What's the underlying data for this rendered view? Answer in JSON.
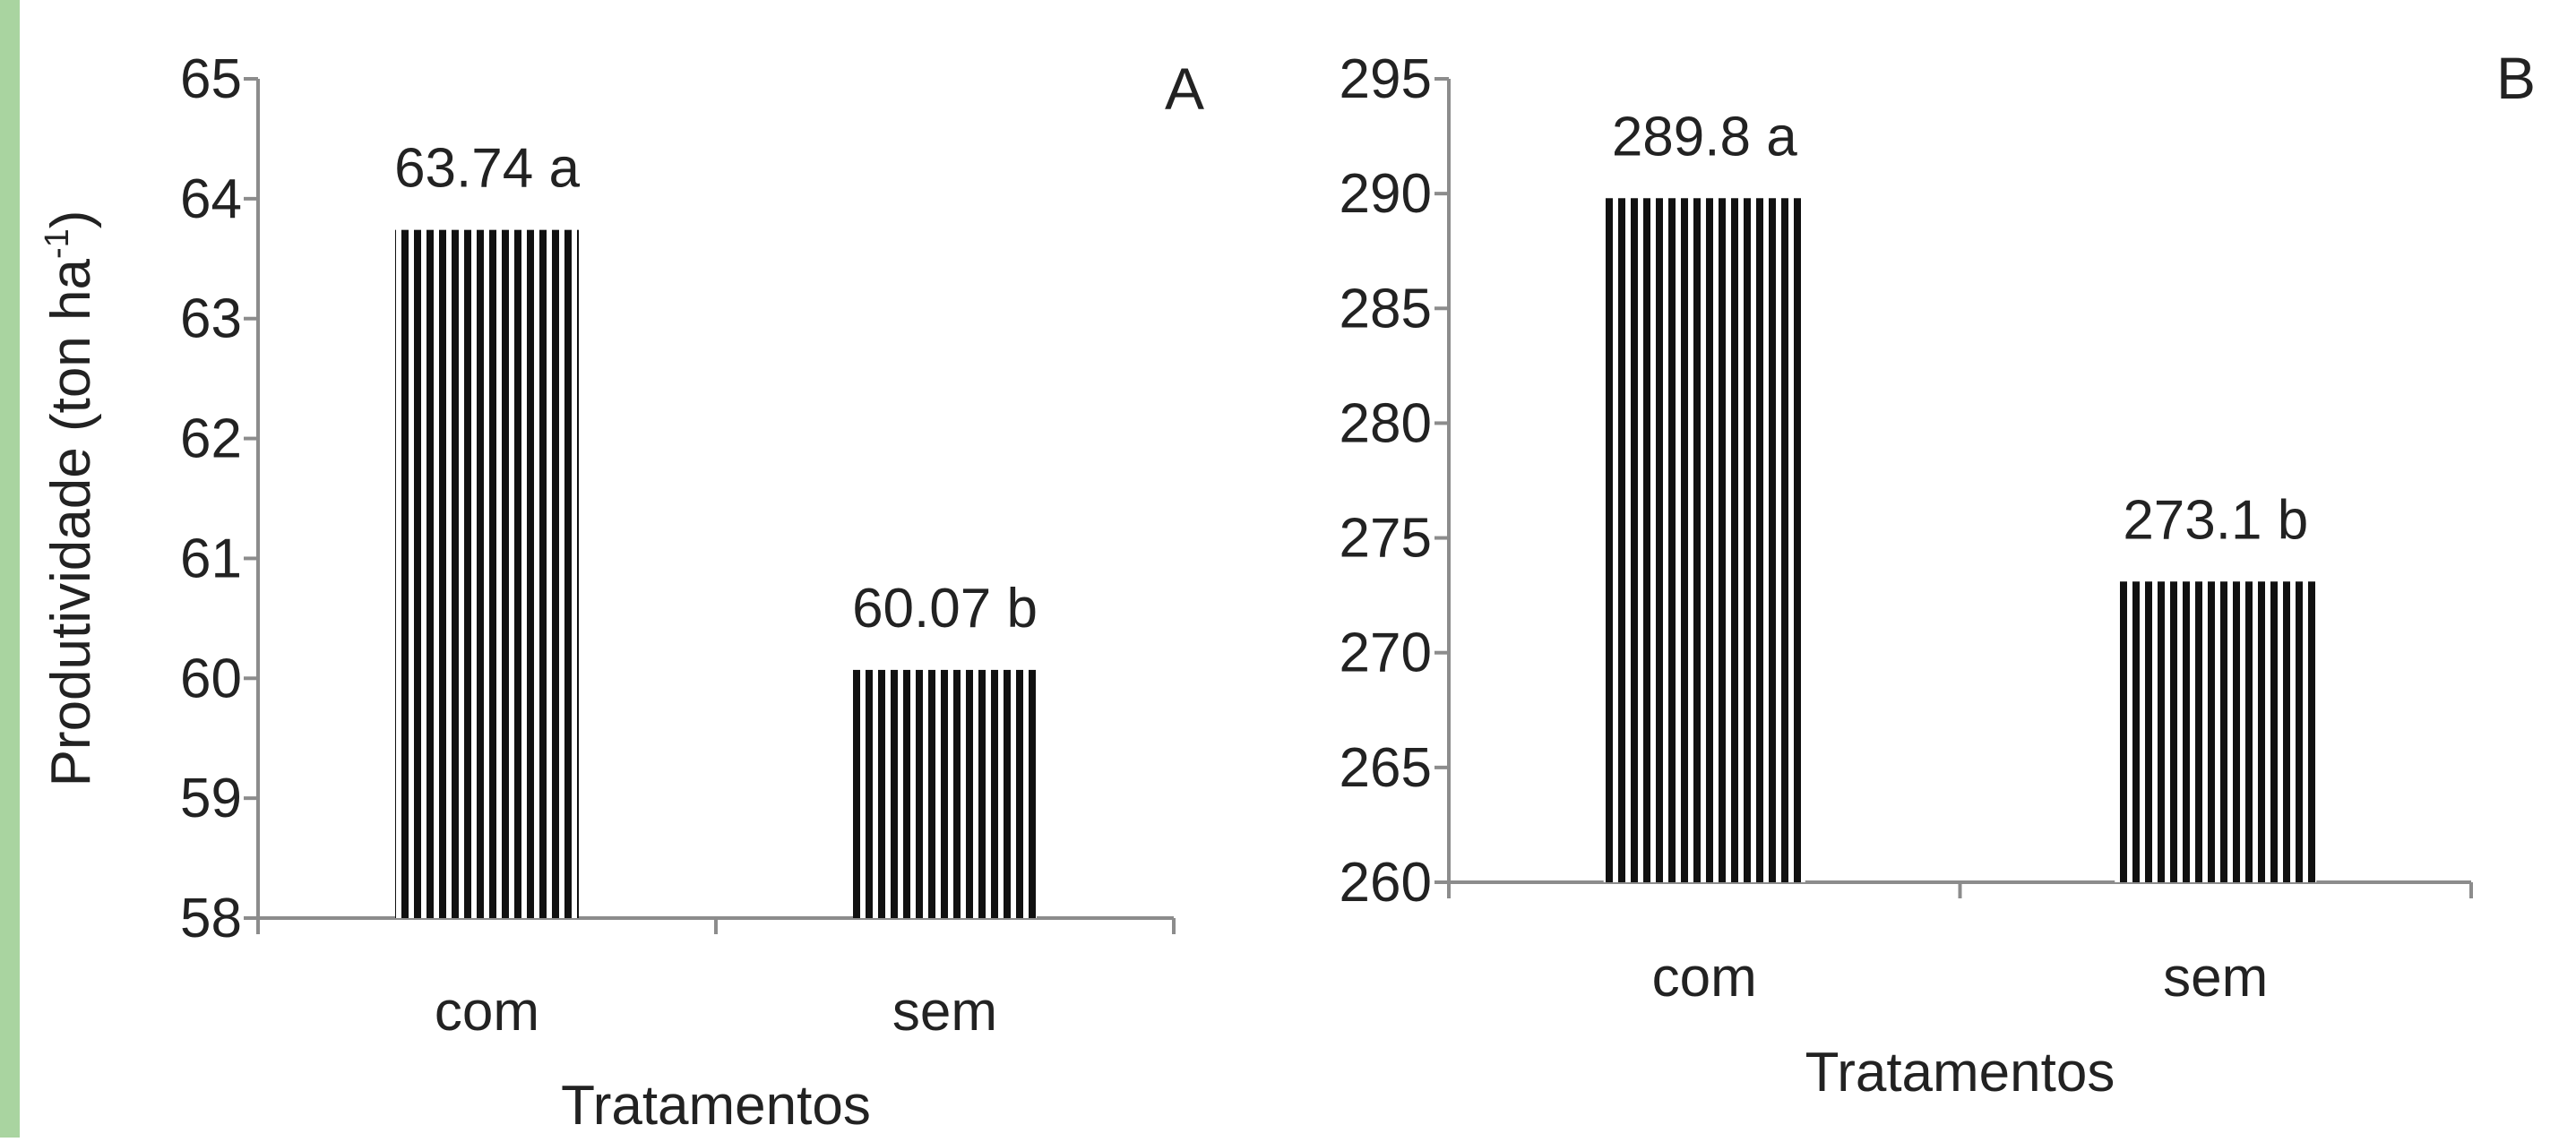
{
  "chart_data": [
    {
      "type": "bar",
      "panel": "A",
      "categories": [
        "com",
        "sem"
      ],
      "values": [
        63.74,
        60.07
      ],
      "data_labels": [
        "63.74 a",
        "60.07 b"
      ],
      "ylim": [
        58,
        65
      ],
      "yticks": [
        58,
        59,
        60,
        61,
        62,
        63,
        64,
        65
      ],
      "xlabel": "Tratamentos",
      "ylabel": "Produtividade (ton ha",
      "ylabel_sup": "-1",
      "ylabel_end": ")",
      "grid": false,
      "legend": "none",
      "bar_pattern": "vertical-stripes",
      "bar_color": "#111111"
    },
    {
      "type": "bar",
      "panel": "B",
      "categories": [
        "com",
        "sem"
      ],
      "values": [
        289.8,
        273.1
      ],
      "data_labels": [
        "289.8 a",
        "273.1 b"
      ],
      "ylim": [
        260,
        295
      ],
      "yticks": [
        260,
        265,
        270,
        275,
        280,
        285,
        290,
        295
      ],
      "xlabel": "Tratamentos",
      "ylabel": "",
      "grid": false,
      "legend": "none",
      "bar_pattern": "vertical-stripes",
      "bar_color": "#111111"
    }
  ],
  "colors": {
    "frame_accent": "#a9d4a0",
    "axis": "#8c8c8c",
    "text": "#222222"
  }
}
